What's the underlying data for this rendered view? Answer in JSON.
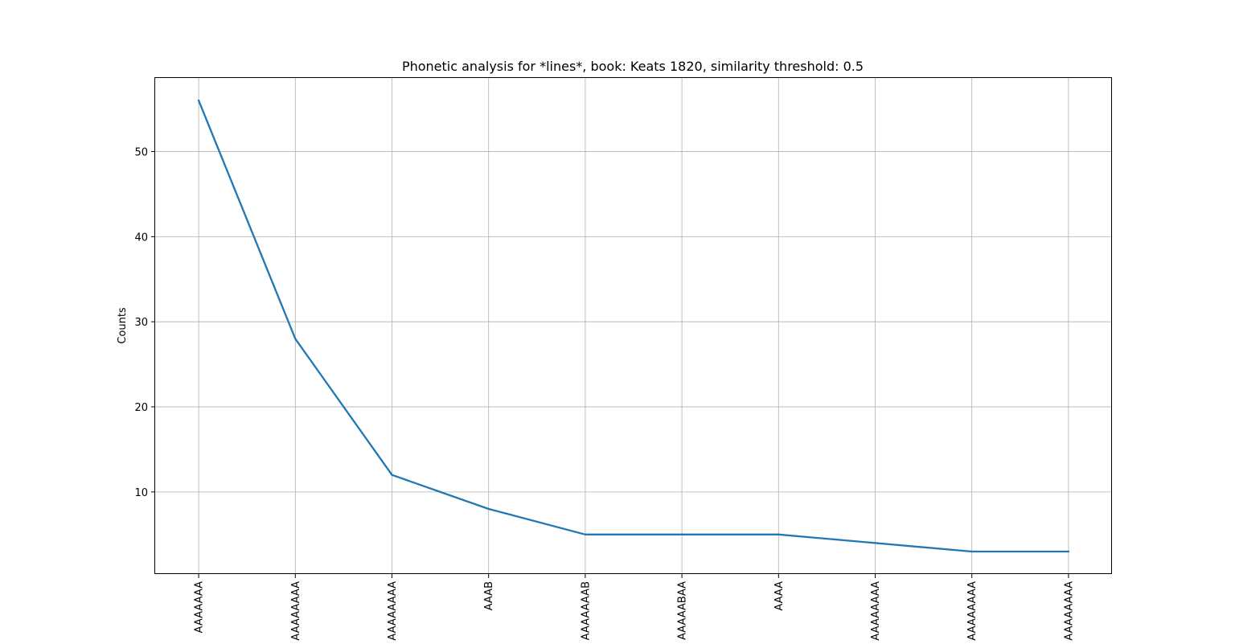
{
  "chart_data": {
    "type": "line",
    "title": "Phonetic analysis for *lines*, book: Keats 1820, similarity threshold: 0.5",
    "xlabel": "",
    "ylabel": "Counts",
    "categories": [
      "AAAAAAA",
      "AAAAAAAA",
      "AAAAAAAA",
      "AAAB",
      "AAAAAAAB",
      "AAAAABAA",
      "AAAA",
      "AAAAAAAA",
      "AAAAAAAA",
      "AAAAAAAA"
    ],
    "values": [
      56,
      28,
      12,
      8,
      5,
      5,
      5,
      4,
      3,
      3
    ],
    "yticks": [
      10,
      20,
      30,
      40,
      50
    ],
    "ylim": [
      0.35,
      58.65
    ],
    "grid": true,
    "line_color": "#1f77b4"
  }
}
